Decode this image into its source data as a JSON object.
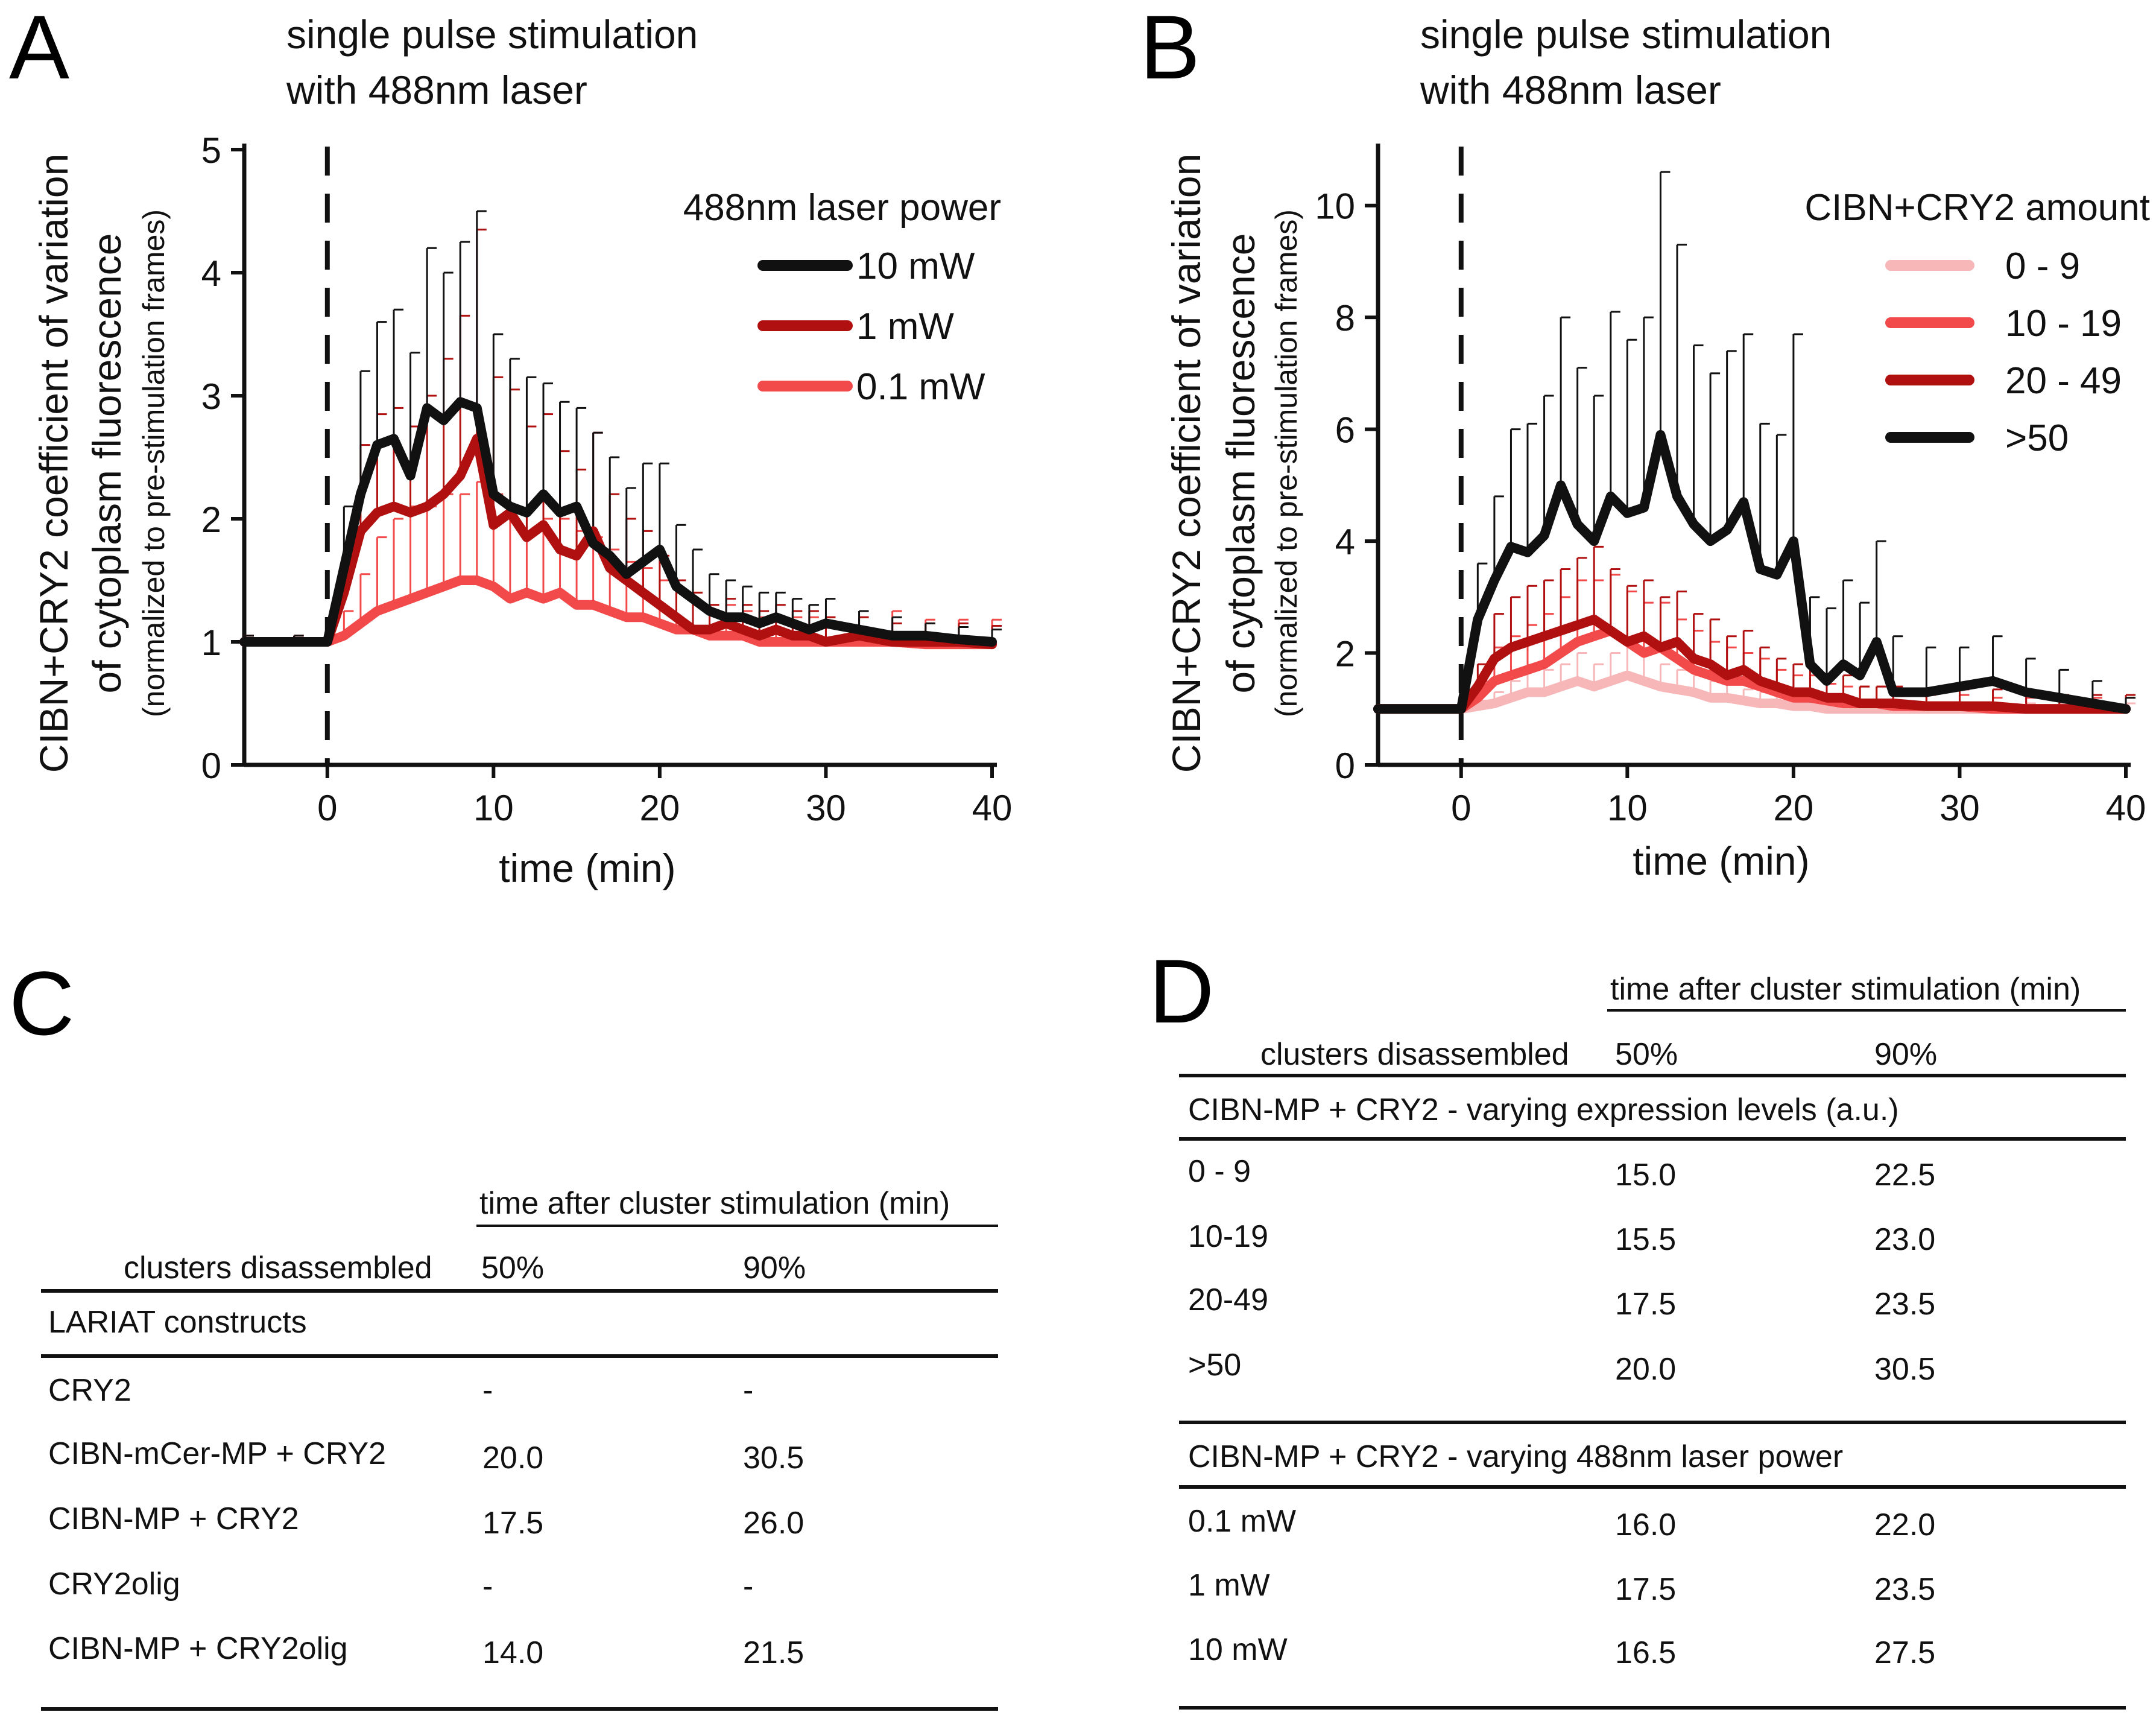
{
  "colors": {
    "black": "#111111",
    "dark_red": "#b01010",
    "red": "#f24a4a",
    "light_pink": "#f7b7b9"
  },
  "chart_data": [
    {
      "panel": "A",
      "type": "line",
      "title": "single pulse stimulation\nwith 488nm laser",
      "xlabel": "time (min)",
      "ylabel": "CIBN+CRY2 coefficient of variation\nof cytoplasm fluorescence",
      "ylabel_note": "(normalized to pre-stimulation frames)",
      "xlim": [
        -5,
        40
      ],
      "ylim": [
        0,
        5
      ],
      "xticks": [
        0,
        10,
        20,
        30,
        40
      ],
      "yticks": [
        0,
        1,
        2,
        3,
        4,
        5
      ],
      "stimulus_line_x": 0,
      "legend_title": "488nm laser power",
      "legend_position": "top-right",
      "x": [
        -5,
        -2,
        0,
        1,
        2,
        3,
        4,
        5,
        6,
        7,
        8,
        9,
        10,
        11,
        12,
        13,
        14,
        15,
        16,
        17,
        18,
        19,
        20,
        21,
        22,
        23,
        24,
        25,
        26,
        27,
        28,
        29,
        30,
        32,
        34,
        36,
        38,
        40
      ],
      "series": [
        {
          "name": "10 mW",
          "color": "#111111",
          "values": [
            1.0,
            1.0,
            1.0,
            1.6,
            2.2,
            2.6,
            2.65,
            2.35,
            2.9,
            2.8,
            2.95,
            2.9,
            2.2,
            2.1,
            2.05,
            2.2,
            2.05,
            2.1,
            1.8,
            1.7,
            1.55,
            1.65,
            1.75,
            1.45,
            1.35,
            1.25,
            1.2,
            1.2,
            1.15,
            1.2,
            1.15,
            1.1,
            1.15,
            1.1,
            1.05,
            1.05,
            1.02,
            1.0
          ],
          "err": [
            0.05,
            0.05,
            0.05,
            0.5,
            1.0,
            1.0,
            1.05,
            1.0,
            1.3,
            1.2,
            1.3,
            1.6,
            1.3,
            1.2,
            1.1,
            0.9,
            0.9,
            0.8,
            0.9,
            0.8,
            0.7,
            0.8,
            0.7,
            0.5,
            0.4,
            0.3,
            0.3,
            0.25,
            0.25,
            0.2,
            0.2,
            0.2,
            0.2,
            0.15,
            0.15,
            0.1,
            0.1,
            0.1
          ]
        },
        {
          "name": "1 mW",
          "color": "#b01010",
          "values": [
            1.0,
            1.0,
            1.0,
            1.4,
            1.9,
            2.05,
            2.1,
            2.05,
            2.1,
            2.2,
            2.35,
            2.65,
            1.95,
            2.05,
            1.85,
            1.95,
            1.75,
            1.7,
            1.9,
            1.6,
            1.5,
            1.4,
            1.3,
            1.2,
            1.1,
            1.1,
            1.15,
            1.1,
            1.05,
            1.1,
            1.05,
            1.05,
            1.0,
            1.05,
            1.0,
            1.0,
            1.0,
            0.98
          ],
          "err": [
            0.05,
            0.05,
            0.05,
            0.3,
            0.7,
            0.8,
            0.8,
            0.7,
            0.9,
            1.1,
            1.3,
            1.7,
            1.2,
            1.0,
            0.9,
            0.9,
            0.8,
            0.7,
            0.8,
            0.6,
            0.5,
            0.5,
            0.4,
            0.3,
            0.3,
            0.2,
            0.2,
            0.2,
            0.2,
            0.2,
            0.2,
            0.2,
            0.2,
            0.15,
            0.15,
            0.15,
            0.15,
            0.15
          ]
        },
        {
          "name": "0.1 mW",
          "color": "#f24a4a",
          "values": [
            1.0,
            1.0,
            1.0,
            1.05,
            1.15,
            1.25,
            1.3,
            1.35,
            1.4,
            1.45,
            1.5,
            1.5,
            1.45,
            1.35,
            1.4,
            1.35,
            1.4,
            1.3,
            1.3,
            1.25,
            1.2,
            1.2,
            1.15,
            1.1,
            1.1,
            1.05,
            1.05,
            1.05,
            1.0,
            1.0,
            1.0,
            1.0,
            1.0,
            1.0,
            1.0,
            0.98,
            0.98,
            0.98
          ],
          "err": [
            0.05,
            0.05,
            0.05,
            0.2,
            0.4,
            0.6,
            0.7,
            0.75,
            0.7,
            0.75,
            0.7,
            0.8,
            0.75,
            0.7,
            0.7,
            0.65,
            0.6,
            0.6,
            0.55,
            0.5,
            0.45,
            0.4,
            0.35,
            0.3,
            0.3,
            0.25,
            0.25,
            0.2,
            0.2,
            0.2,
            0.2,
            0.2,
            0.2,
            0.2,
            0.25,
            0.2,
            0.2,
            0.2
          ]
        }
      ]
    },
    {
      "panel": "B",
      "type": "line",
      "title": "single pulse stimulation\nwith 488nm laser",
      "xlabel": "time (min)",
      "ylabel": "CIBN+CRY2 coefficient of variation\nof cytoplasm fluorescence",
      "ylabel_note": "(normalized to pre-stimulation frames)",
      "xlim": [
        -5,
        40
      ],
      "ylim": [
        0,
        11
      ],
      "xticks": [
        0,
        10,
        20,
        30,
        40
      ],
      "yticks": [
        0,
        2,
        4,
        6,
        8,
        10
      ],
      "stimulus_line_x": 0,
      "legend_title": "CIBN+CRY2 amount",
      "legend_position": "top-right",
      "x": [
        -5,
        -2,
        0,
        1,
        2,
        3,
        4,
        5,
        6,
        7,
        8,
        9,
        10,
        11,
        12,
        13,
        14,
        15,
        16,
        17,
        18,
        19,
        20,
        21,
        22,
        23,
        24,
        25,
        26,
        28,
        30,
        32,
        34,
        36,
        38,
        40
      ],
      "series": [
        {
          "name": "0 - 9",
          "color": "#f7b7b9",
          "values": [
            1.0,
            1.0,
            1.0,
            1.05,
            1.1,
            1.2,
            1.3,
            1.3,
            1.4,
            1.5,
            1.4,
            1.5,
            1.6,
            1.5,
            1.4,
            1.35,
            1.3,
            1.2,
            1.2,
            1.15,
            1.1,
            1.1,
            1.05,
            1.05,
            1.0,
            1.0,
            1.0,
            1.0,
            1.0,
            1.0,
            1.0,
            1.0,
            1.0,
            1.0,
            1.0,
            1.0
          ],
          "err": [
            0.05,
            0.05,
            0.05,
            0.1,
            0.2,
            0.3,
            0.4,
            0.4,
            0.4,
            0.5,
            0.4,
            0.5,
            0.6,
            0.5,
            0.4,
            0.35,
            0.3,
            0.3,
            0.3,
            0.2,
            0.2,
            0.2,
            0.2,
            0.2,
            0.15,
            0.15,
            0.15,
            0.15,
            0.1,
            0.1,
            0.1,
            0.1,
            0.1,
            0.1,
            0.1,
            0.1
          ]
        },
        {
          "name": "10 - 19",
          "color": "#f24a4a",
          "values": [
            1.0,
            1.0,
            1.0,
            1.2,
            1.5,
            1.6,
            1.7,
            1.8,
            2.0,
            2.2,
            2.3,
            2.4,
            2.2,
            2.0,
            2.1,
            1.9,
            1.7,
            1.6,
            1.5,
            1.5,
            1.4,
            1.3,
            1.2,
            1.2,
            1.15,
            1.1,
            1.1,
            1.1,
            1.05,
            1.05,
            1.05,
            1.0,
            1.0,
            1.0,
            1.0,
            1.0
          ],
          "err": [
            0.05,
            0.05,
            0.05,
            0.3,
            0.6,
            0.7,
            0.8,
            0.9,
            1.0,
            1.1,
            1.0,
            1.0,
            0.9,
            0.9,
            0.8,
            0.7,
            0.7,
            0.6,
            0.6,
            0.5,
            0.5,
            0.4,
            0.4,
            0.4,
            0.3,
            0.3,
            0.3,
            0.3,
            0.2,
            0.2,
            0.2,
            0.2,
            0.2,
            0.2,
            0.2,
            0.2
          ]
        },
        {
          "name": "20 - 49",
          "color": "#b01010",
          "values": [
            1.0,
            1.0,
            1.0,
            1.4,
            1.9,
            2.1,
            2.2,
            2.3,
            2.4,
            2.5,
            2.6,
            2.4,
            2.2,
            2.3,
            2.1,
            2.2,
            1.9,
            1.8,
            1.6,
            1.7,
            1.5,
            1.4,
            1.3,
            1.3,
            1.2,
            1.2,
            1.1,
            1.1,
            1.1,
            1.05,
            1.05,
            1.05,
            1.0,
            1.0,
            1.0,
            1.0
          ],
          "err": [
            0.05,
            0.05,
            0.05,
            0.4,
            0.8,
            0.9,
            1.0,
            1.0,
            1.1,
            1.2,
            1.3,
            1.1,
            1.0,
            1.0,
            0.9,
            0.9,
            0.8,
            0.8,
            0.7,
            0.7,
            0.6,
            0.5,
            0.5,
            0.4,
            0.4,
            0.4,
            0.3,
            0.3,
            0.3,
            0.3,
            0.3,
            0.3,
            0.25,
            0.25,
            0.25,
            0.25
          ]
        },
        {
          "name": ">50",
          "color": "#111111",
          "values": [
            1.0,
            1.0,
            1.0,
            2.6,
            3.3,
            3.9,
            3.8,
            4.1,
            5.0,
            4.3,
            4.0,
            4.8,
            4.5,
            4.6,
            5.9,
            4.8,
            4.3,
            4.0,
            4.2,
            4.7,
            3.5,
            3.4,
            4.0,
            1.8,
            1.5,
            1.8,
            1.6,
            2.2,
            1.3,
            1.3,
            1.4,
            1.5,
            1.3,
            1.2,
            1.1,
            1.0
          ],
          "err": [
            0.05,
            0.05,
            0.05,
            1.0,
            1.5,
            2.1,
            2.3,
            2.5,
            3.0,
            2.8,
            2.6,
            3.3,
            3.1,
            3.4,
            4.7,
            4.5,
            3.2,
            3.0,
            3.2,
            3.0,
            2.6,
            2.5,
            3.7,
            1.2,
            1.3,
            1.5,
            1.3,
            1.8,
            1.0,
            0.8,
            0.7,
            0.8,
            0.6,
            0.5,
            0.4,
            0.2
          ]
        }
      ]
    }
  ],
  "panel_labels": {
    "a": "A",
    "b": "B",
    "c": "C",
    "d": "D"
  },
  "table_c": {
    "header_group": "time after cluster stimulation (min)",
    "row_label_header": "clusters disassembled",
    "col_50": "50%",
    "col_90": "90%",
    "section": "LARIAT constructs",
    "rows": [
      {
        "name": "CRY2",
        "p50": "-",
        "p90": "-"
      },
      {
        "name": "CIBN-mCer-MP + CRY2",
        "p50": "20.0",
        "p90": "30.5"
      },
      {
        "name": "CIBN-MP + CRY2",
        "p50": "17.5",
        "p90": "26.0"
      },
      {
        "name": "CRY2olig",
        "p50": "-",
        "p90": "-"
      },
      {
        "name": "CIBN-MP + CRY2olig",
        "p50": "14.0",
        "p90": "21.5"
      }
    ]
  },
  "table_d": {
    "header_group": "time after cluster stimulation (min)",
    "row_label_header": "clusters disassembled",
    "col_50": "50%",
    "col_90": "90%",
    "section1": "CIBN-MP + CRY2 - varying expression levels (a.u.)",
    "rows1": [
      {
        "name": "0 - 9",
        "p50": "15.0",
        "p90": "22.5"
      },
      {
        "name": "10-19",
        "p50": "15.5",
        "p90": "23.0"
      },
      {
        "name": "20-49",
        "p50": "17.5",
        "p90": "23.5"
      },
      {
        "name": ">50",
        "p50": "20.0",
        "p90": "30.5"
      }
    ],
    "section2": "CIBN-MP + CRY2 - varying 488nm laser power",
    "rows2": [
      {
        "name": "0.1 mW",
        "p50": "16.0",
        "p90": "22.0"
      },
      {
        "name": "1 mW",
        "p50": "17.5",
        "p90": "23.5"
      },
      {
        "name": "10 mW",
        "p50": "16.5",
        "p90": "27.5"
      }
    ]
  }
}
